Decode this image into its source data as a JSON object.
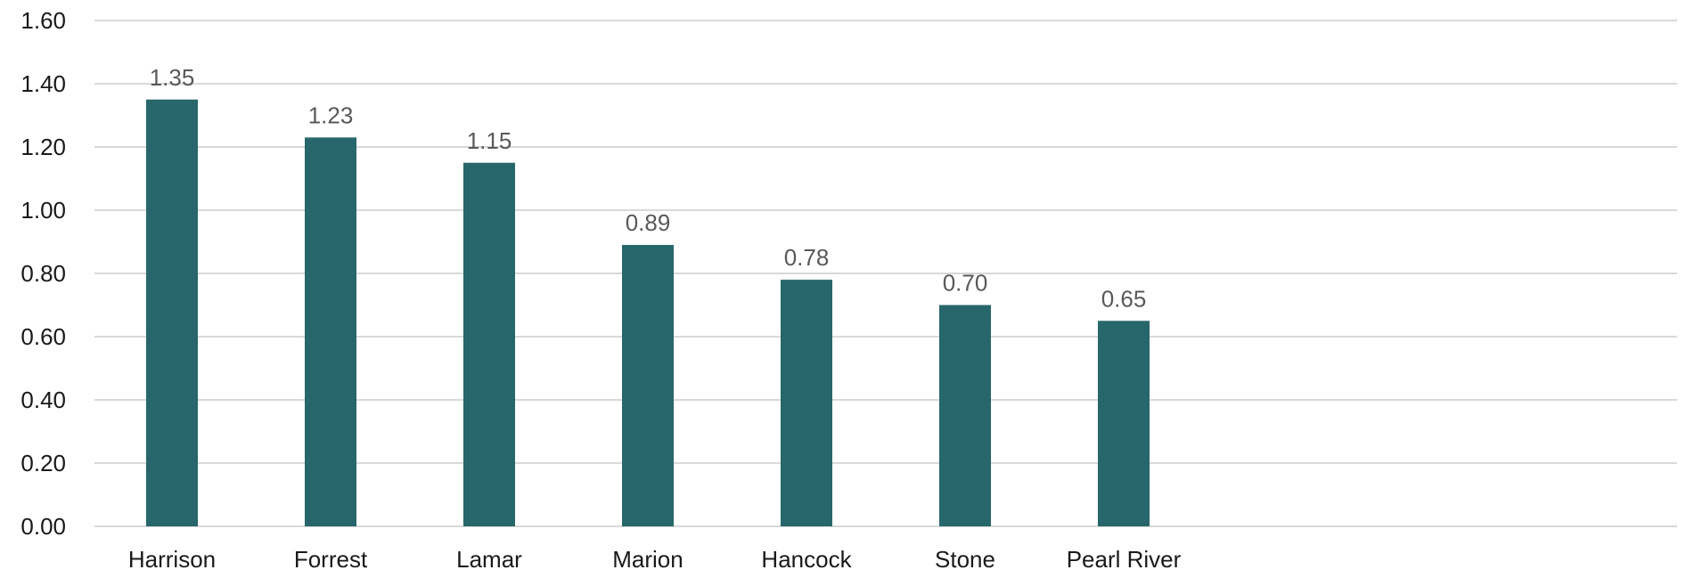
{
  "chart_data": {
    "type": "bar",
    "title": "",
    "xlabel": "",
    "ylabel": "",
    "categories": [
      "Harrison",
      "Forrest",
      "Lamar",
      "Marion",
      "Hancock",
      "Stone",
      "Pearl River"
    ],
    "values": [
      1.35,
      1.23,
      1.15,
      0.89,
      0.78,
      0.7,
      0.65
    ],
    "value_labels": [
      "1.35",
      "1.23",
      "1.15",
      "0.89",
      "0.78",
      "0.70",
      "0.65"
    ],
    "ylim": [
      0,
      1.6
    ],
    "y_ticks": [
      0,
      0.2,
      0.4,
      0.6,
      0.8,
      1.0,
      1.2,
      1.4,
      1.6
    ],
    "y_tick_labels": [
      "0.00",
      "0.20",
      "0.40",
      "0.60",
      "0.80",
      "1.00",
      "1.20",
      "1.40",
      "1.60"
    ],
    "grid": true,
    "legend": "none",
    "bar_color": "#27666a",
    "grid_color": "#d9d9d9",
    "text_color": "#1a1a1a",
    "label_color": "#595959"
  }
}
